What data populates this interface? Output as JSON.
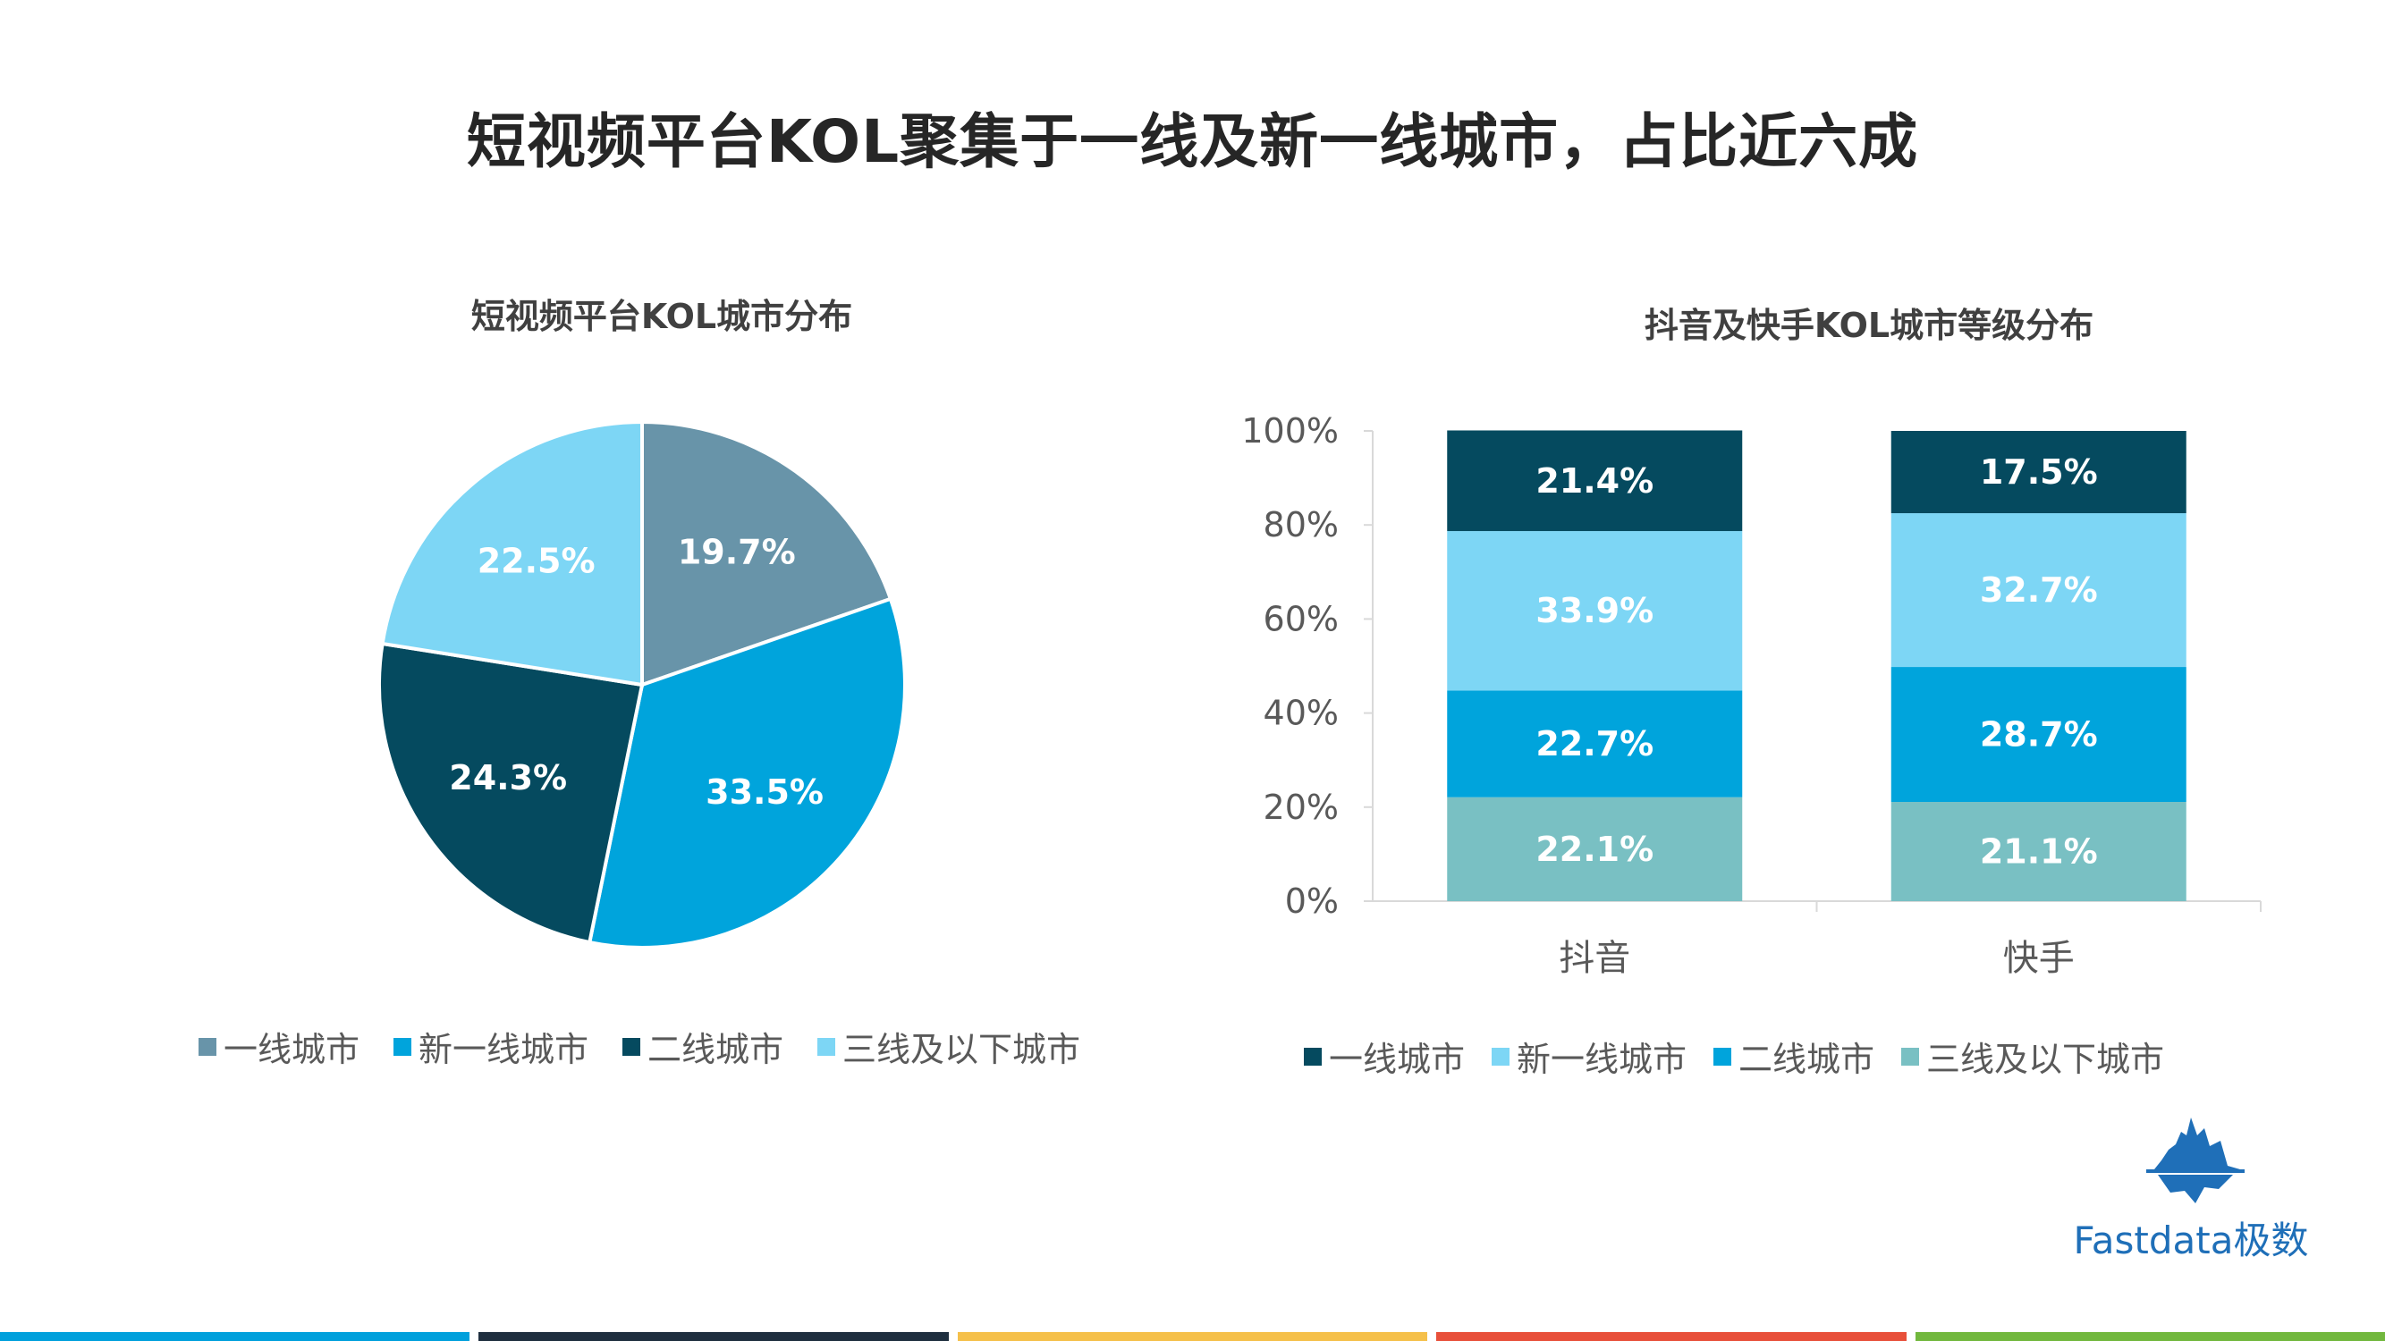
{
  "page": {
    "title": "短视频平台KOL聚集于一线及新一线城市，占比近六成",
    "brand": "Fastdata极数",
    "footer_colors": [
      "#00a0dc",
      "#1f2f3f",
      "#f5c04a",
      "#e8503a",
      "#72b83e"
    ]
  },
  "chart_data": [
    {
      "type": "pie",
      "title": "短视频平台KOL城市分布",
      "categories": [
        "一线城市",
        "新一线城市",
        "二线城市",
        "三线及以下城市"
      ],
      "values": [
        19.7,
        33.5,
        24.3,
        22.5
      ],
      "labels": [
        "19.7%",
        "33.5%",
        "24.3%",
        "22.5%"
      ],
      "colors": [
        "#6894a9",
        "#00a4dc",
        "#054a5f",
        "#7dd6f5"
      ],
      "legend": "bottom"
    },
    {
      "type": "bar",
      "stacked": true,
      "title": "抖音及快手KOL城市等级分布",
      "categories": [
        "抖音",
        "快手"
      ],
      "series": [
        {
          "name": "三线及以下城市",
          "values": [
            22.1,
            21.1
          ],
          "labels": [
            "22.1%",
            "21.1%"
          ],
          "color": "#79c0c3"
        },
        {
          "name": "二线城市",
          "values": [
            22.7,
            28.7
          ],
          "labels": [
            "22.7%",
            "28.7%"
          ],
          "color": "#00a4dc"
        },
        {
          "name": "新一线城市",
          "values": [
            33.9,
            32.7
          ],
          "labels": [
            "33.9%",
            "32.7%"
          ],
          "color": "#7dd6f5"
        },
        {
          "name": "一线城市",
          "values": [
            21.4,
            17.5
          ],
          "labels": [
            "21.4%",
            "17.5%"
          ],
          "color": "#054a5f"
        }
      ],
      "legend_order": [
        "一线城市",
        "新一线城市",
        "二线城市",
        "三线及以下城市"
      ],
      "yticks": [
        "0%",
        "20%",
        "40%",
        "60%",
        "80%",
        "100%"
      ],
      "ylim": [
        0,
        100
      ],
      "grid": false,
      "legend": "bottom"
    }
  ]
}
